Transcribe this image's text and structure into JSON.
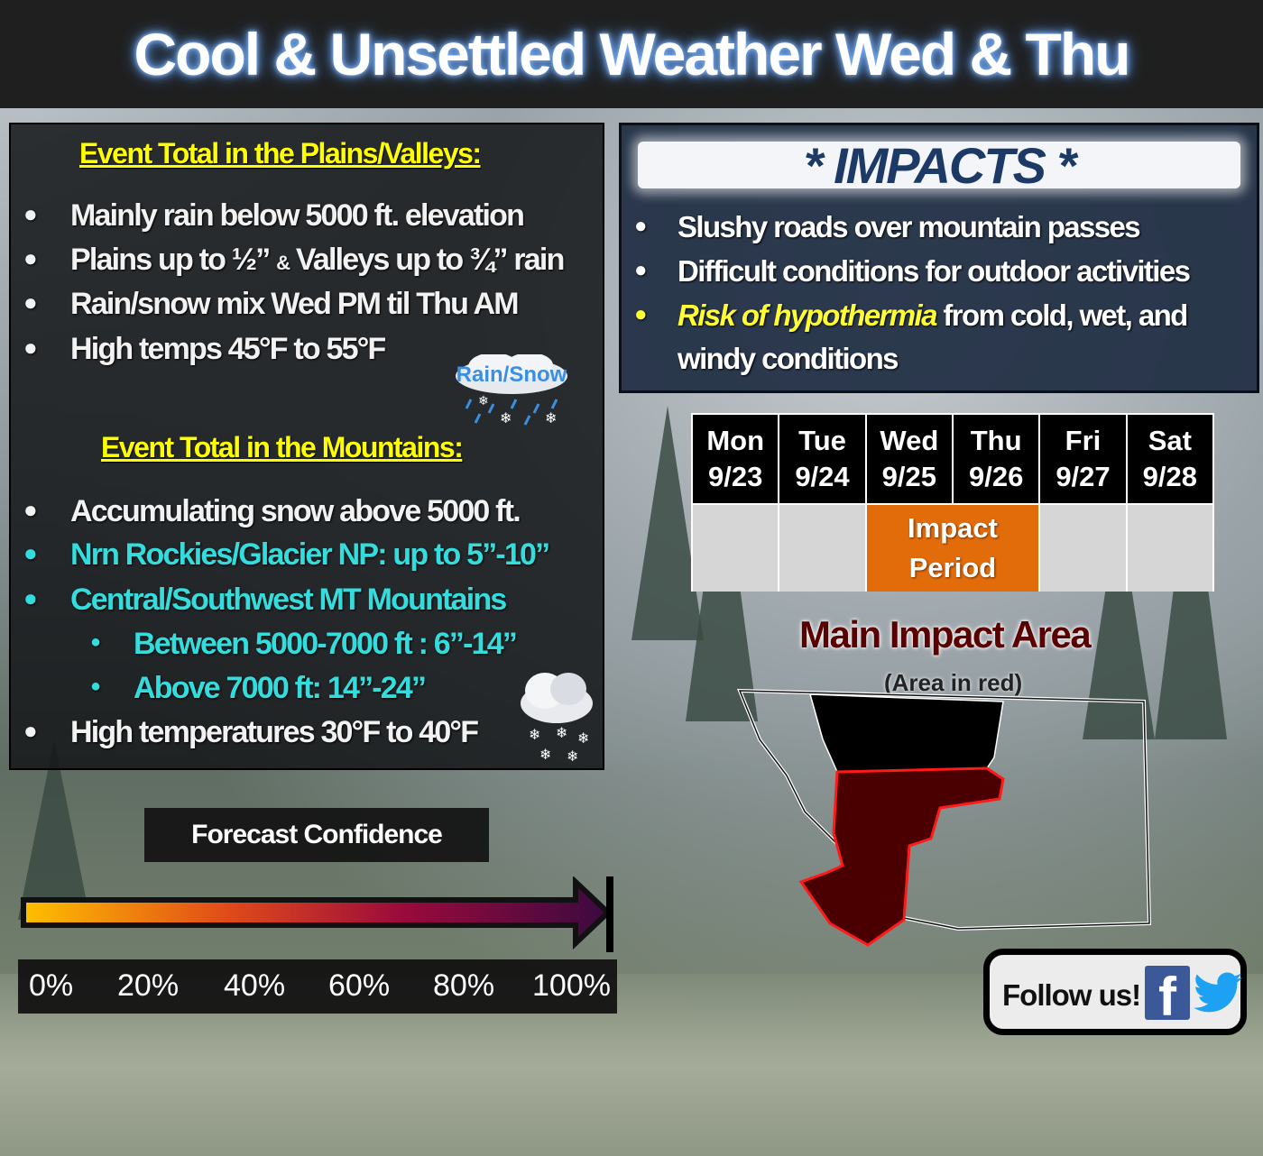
{
  "title": "Cool & Unsettled Weather Wed & Thu",
  "plains": {
    "heading": "Event Total in the Plains/Valleys:",
    "item1": "Mainly rain below 5000 ft. elevation",
    "item2_a": "Plains up to ½” ",
    "item2_amp": "&",
    "item2_b": " Valleys up to ¾” rain",
    "item3": "Rain/snow mix Wed PM til Thu AM",
    "item4": "High temps 45°F to 55°F",
    "icon_label": "Rain/Snow"
  },
  "mountains": {
    "heading": "Event Total in the Mountains:",
    "item1": "Accumulating snow above 5000 ft.",
    "item2": "Nrn Rockies/Glacier NP:  up to 5”-10”",
    "item3": "Central/Southwest MT Mountains",
    "sub1": "Between 5000-7000 ft : 6”-14”",
    "sub2": "Above 7000 ft: 14”-24”",
    "item4": "High temperatures 30°F to 40°F"
  },
  "impacts": {
    "title": "* IMPACTS *",
    "item1": "Slushy roads over mountain passes",
    "item2": "Difficult conditions for outdoor activities",
    "item3_highlight": "Risk of hypothermia",
    "item3_rest": " from cold, wet, and",
    "item3_line2": "windy conditions"
  },
  "days": [
    {
      "day": "Mon",
      "date": "9/23"
    },
    {
      "day": "Tue",
      "date": "9/24"
    },
    {
      "day": "Wed",
      "date": "9/25"
    },
    {
      "day": "Thu",
      "date": "9/26"
    },
    {
      "day": "Fri",
      "date": "9/27"
    },
    {
      "day": "Sat",
      "date": "9/28"
    }
  ],
  "impact_period": {
    "line1": "Impact",
    "line2": "Period"
  },
  "map": {
    "title": "Main Impact Area",
    "subtitle": "(Area in red)"
  },
  "confidence": {
    "label": "Forecast Confidence",
    "level": 1.0,
    "ticks": [
      "0%",
      "20%",
      "40%",
      "60%",
      "80%",
      "100%"
    ]
  },
  "follow": {
    "text": "Follow us!"
  },
  "colors": {
    "heading": "#ffff00",
    "cyan_text": "#33dddd",
    "impact_orange": "#e36c0a",
    "impact_area_red": "#4a0000",
    "hypothermia": "#ffff33"
  }
}
